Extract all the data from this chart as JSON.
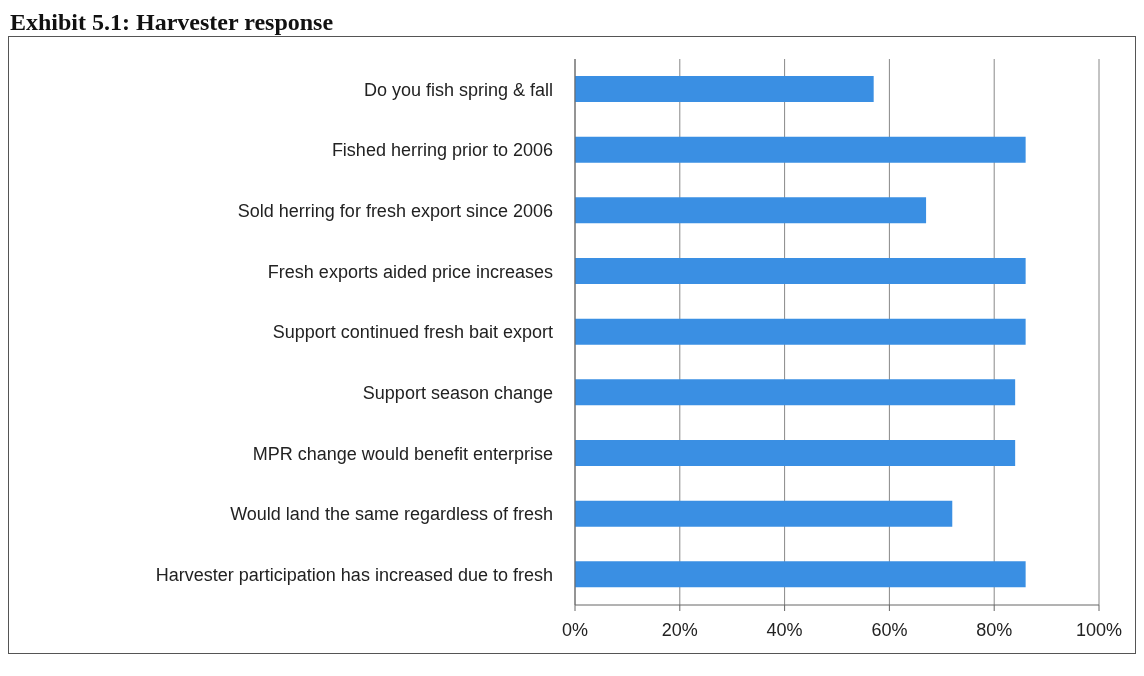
{
  "chart_data": {
    "type": "bar",
    "orientation": "horizontal",
    "title": "Exhibit 5.1: Harvester response",
    "categories": [
      "Do you fish spring & fall",
      "Fished herring prior to 2006",
      "Sold herring for fresh export since 2006",
      "Fresh exports aided price increases",
      "Support continued fresh bait export",
      "Support season change",
      "MPR change would benefit enterprise",
      "Would land the same regardless of fresh",
      "Harvester participation has increased due to fresh"
    ],
    "values": [
      57,
      86,
      67,
      86,
      86,
      84,
      84,
      72,
      86
    ],
    "color": "#3a8fe3",
    "xlim": [
      0,
      100
    ],
    "xticks": [
      {
        "value": 0,
        "label": "0%"
      },
      {
        "value": 20,
        "label": "20%"
      },
      {
        "value": 40,
        "label": "40%"
      },
      {
        "value": 60,
        "label": "60%"
      },
      {
        "value": 80,
        "label": "80%"
      },
      {
        "value": 100,
        "label": "100%"
      }
    ],
    "grid": "x"
  }
}
